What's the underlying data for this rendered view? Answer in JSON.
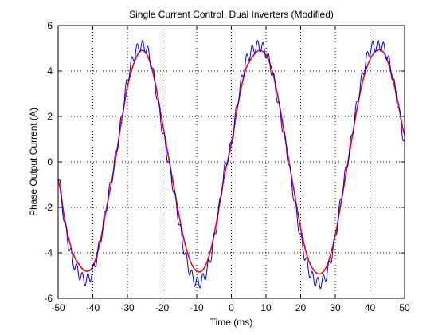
{
  "chart_data": {
    "type": "line",
    "title": "Single Current Control, Dual Inverters (Modified)",
    "xlabel": "Time (ms)",
    "ylabel": "Phase Output Current (A)",
    "xlim": [
      -50,
      50
    ],
    "ylim": [
      -6,
      6
    ],
    "xticks": [
      -50,
      -40,
      -30,
      -20,
      -10,
      0,
      10,
      20,
      30,
      40,
      50
    ],
    "yticks": [
      -6,
      -4,
      -2,
      0,
      2,
      4,
      6
    ],
    "grid": true,
    "grid_style": "dotted",
    "legend": "none",
    "series": [
      {
        "color": "#ff0000",
        "x": [
          -50,
          -48,
          -46,
          -44,
          -42,
          -40,
          -38,
          -36,
          -34,
          -32,
          -30,
          -28,
          -26,
          -24,
          -22,
          -20,
          -18,
          -16,
          -14,
          -12,
          -10,
          -8,
          -6,
          -4,
          -2,
          0,
          2,
          4,
          6,
          8,
          10,
          12,
          14,
          16,
          18,
          20,
          22,
          24,
          26,
          28,
          30,
          32,
          34,
          36,
          38,
          40,
          42,
          44,
          46,
          48,
          50
        ],
        "values": [
          -0.8,
          -2.6,
          -3.9,
          -4.5,
          -4.8,
          -4.6,
          -3.6,
          -2.0,
          -0.4,
          1.5,
          3.3,
          4.4,
          4.9,
          4.6,
          3.5,
          1.8,
          0.1,
          -1.6,
          -3.2,
          -4.3,
          -4.8,
          -4.7,
          -3.9,
          -2.4,
          -0.6,
          0.8,
          2.6,
          4.0,
          4.6,
          4.9,
          4.7,
          3.9,
          2.4,
          0.6,
          -1.2,
          -2.9,
          -4.2,
          -4.8,
          -4.9,
          -4.4,
          -3.2,
          -1.5,
          0.3,
          2.1,
          3.6,
          4.5,
          4.9,
          4.8,
          4.0,
          2.7,
          1.2
        ]
      },
      {
        "color": "#0000ff",
        "noise_amplitude": 0.25,
        "x": [
          -50,
          -48,
          -46,
          -44,
          -42,
          -40,
          -38,
          -36,
          -34,
          -32,
          -30,
          -28,
          -26,
          -24,
          -22,
          -20,
          -18,
          -16,
          -14,
          -12,
          -10,
          -8,
          -6,
          -4,
          -2,
          0,
          2,
          4,
          6,
          8,
          10,
          12,
          14,
          16,
          18,
          20,
          22,
          24,
          26,
          28,
          30,
          32,
          34,
          36,
          38,
          40,
          42,
          44,
          46,
          48,
          50
        ],
        "values": [
          -0.6,
          -2.8,
          -4.2,
          -4.9,
          -5.2,
          -4.8,
          -3.6,
          -1.9,
          -0.3,
          1.6,
          3.6,
          4.7,
          5.1,
          4.8,
          3.4,
          1.5,
          -0.1,
          -1.8,
          -3.6,
          -4.8,
          -5.3,
          -5.1,
          -4.2,
          -2.5,
          -0.4,
          0.8,
          2.8,
          4.3,
          4.9,
          5.1,
          4.8,
          3.8,
          2.2,
          0.5,
          -1.5,
          -3.3,
          -4.6,
          -5.2,
          -5.3,
          -4.7,
          -3.3,
          -1.3,
          0.4,
          2.3,
          3.9,
          4.9,
          5.1,
          5.0,
          4.1,
          2.6,
          0.9
        ]
      }
    ]
  }
}
